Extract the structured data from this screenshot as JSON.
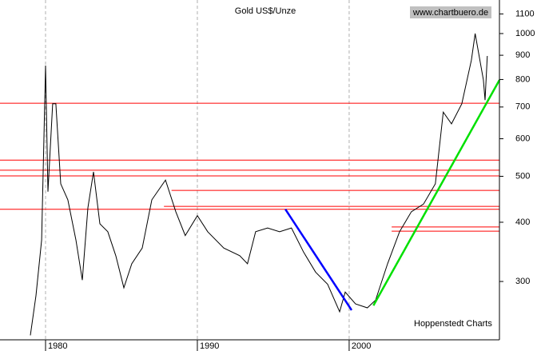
{
  "chart_data": {
    "type": "line",
    "title": "Gold US$/Unze",
    "annotations": [
      "www.chartbuero.de",
      "Hoppenstedt Charts"
    ],
    "log_scale": true,
    "xlim": [
      1977,
      2009.9
    ],
    "xticks": [
      1980,
      1990,
      2000
    ],
    "ylim": [
      226,
      1177
    ],
    "yticks": [
      300,
      400,
      500,
      600,
      700,
      800,
      900,
      1000,
      1100
    ],
    "x_grid": true,
    "series": [
      {
        "color": "#000000",
        "x": [
          1979.0,
          1979.37,
          1979.74,
          1980.0,
          1980.16,
          1980.47,
          1980.68,
          1981.0,
          1981.47,
          1982.0,
          1982.42,
          1982.79,
          1983.16,
          1983.58,
          1984.1,
          1984.63,
          1985.16,
          1985.68,
          1986.37,
          1987.0,
          1987.9,
          1988.58,
          1989.2,
          1990.0,
          1990.68,
          1991.74,
          1992.79,
          1993.3,
          1993.84,
          1994.63,
          1995.42,
          1996.2,
          1997.0,
          1997.79,
          1998.58,
          1999.37,
          1999.74,
          2000.42,
          2001.2,
          2001.74,
          2002.53,
          2003.32,
          2004.1,
          2004.9,
          2005.68,
          2006.2,
          2006.74,
          2007.42,
          2008.05,
          2008.3,
          2008.84,
          2008.95,
          2009.1
        ],
        "values": [
          231,
          280,
          367,
          856,
          464,
          711,
          711,
          482,
          446,
          367,
          302,
          429,
          511,
          397,
          382,
          340,
          291,
          327,
          353,
          446,
          491,
          421,
          375,
          413,
          382,
          353,
          340,
          327,
          382,
          389,
          382,
          389,
          346,
          314,
          296,
          259,
          285,
          269,
          264,
          274,
          327,
          382,
          421,
          437,
          482,
          683,
          645,
          711,
          879,
          1000,
          799,
          724,
          897
        ]
      }
    ],
    "horizontal_lines": {
      "color": "#ff0000",
      "lines": [
        {
          "y": 713,
          "x": [
            1977,
            2009.9
          ]
        },
        {
          "y": 541,
          "x": [
            1977,
            2009.9
          ]
        },
        {
          "y": 515,
          "x": [
            1977,
            2009.9
          ]
        },
        {
          "y": 501,
          "x": [
            1977,
            2009.9
          ]
        },
        {
          "y": 467,
          "x": [
            1988.3,
            2009.9
          ]
        },
        {
          "y": 432,
          "x": [
            1987.8,
            2009.9
          ]
        },
        {
          "y": 426,
          "x": [
            1977,
            2009.9
          ]
        },
        {
          "y": 391,
          "x": [
            2002.8,
            2009.9
          ]
        },
        {
          "y": 383,
          "x": [
            2002.8,
            2009.9
          ]
        }
      ]
    },
    "trend_lines": [
      {
        "color": "#0000ff",
        "x": [
          1995.8,
          2000.16
        ],
        "values": [
          426,
          261
        ]
      },
      {
        "color": "#00e000",
        "x": [
          2001.6,
          2009.9
        ],
        "values": [
          267,
          798
        ]
      }
    ]
  }
}
